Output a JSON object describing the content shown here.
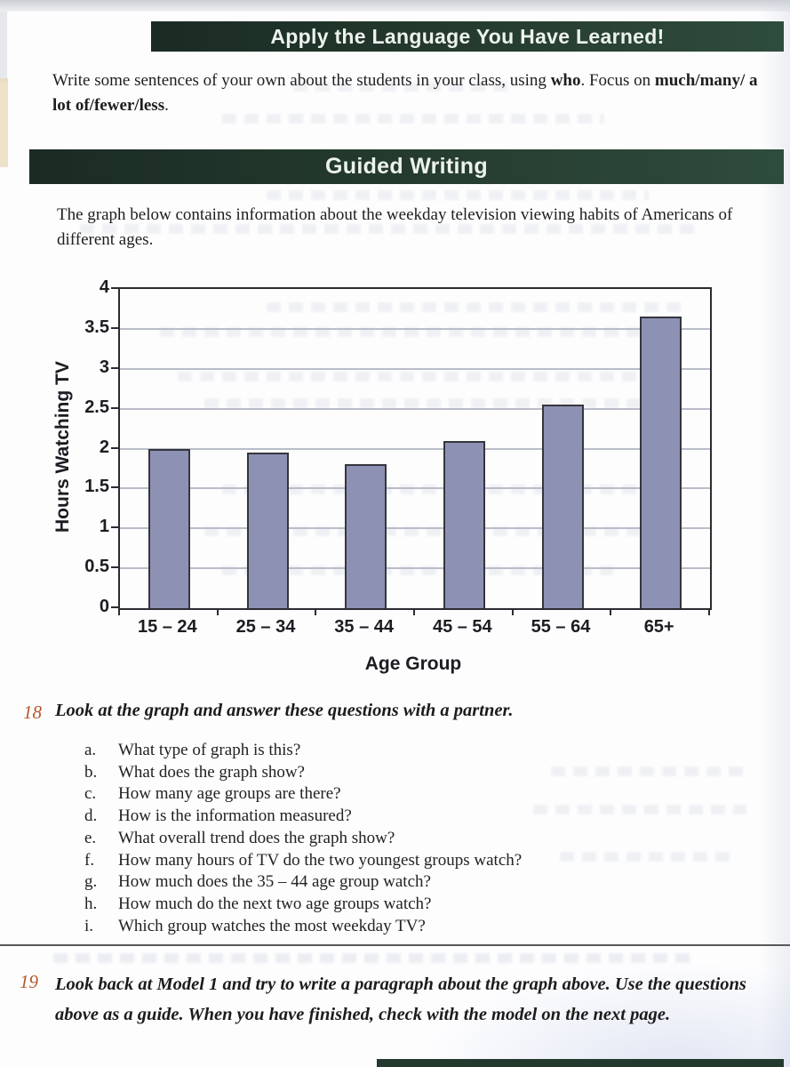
{
  "colors": {
    "banner_green": "#24392e",
    "banner_text": "#ecf2ec",
    "exercise_number_orange": "#b5582b",
    "bar_fill": "#8d92b4",
    "bar_border": "#35353d",
    "gridline": "#b9bdc9"
  },
  "header": {
    "banner1": "Apply the Language You Have Learned!",
    "banner2": "Guided Writing"
  },
  "intro": {
    "p1": "Write some sentences of your own about the students in your class, using ",
    "p2": "who",
    "p3": ". Focus on ",
    "p4": "much/many/ a lot of/fewer/less",
    "p5": "."
  },
  "guided": {
    "intro": "The graph below contains information about the weekday television viewing habits of Americans of different ages."
  },
  "chart_data": {
    "type": "bar",
    "title": "",
    "categories": [
      "15 – 24",
      "25 – 34",
      "35 – 44",
      "45 – 54",
      "55 – 64",
      "65+"
    ],
    "values": [
      2.0,
      1.95,
      1.8,
      2.1,
      2.55,
      3.65
    ],
    "xlabel": "Age Group",
    "ylabel": "Hours Watching TV",
    "ylim": [
      0,
      4
    ],
    "ytick_step": 0.5,
    "grid": true,
    "legend": "none"
  },
  "exercise18": {
    "number": "18",
    "prompt": "Look at the graph and answer these questions with a partner.",
    "items": [
      {
        "letter": "a.",
        "text": "What type of graph is this?"
      },
      {
        "letter": "b.",
        "text": "What does the graph show?"
      },
      {
        "letter": "c.",
        "text": "How many age groups are there?"
      },
      {
        "letter": "d.",
        "text": "How is the information measured?"
      },
      {
        "letter": "e.",
        "text": "What overall trend does the graph show?"
      },
      {
        "letter": "f.",
        "text": "How many hours of TV do the two youngest groups watch?"
      },
      {
        "letter": "g.",
        "text": "How much does the 35 – 44 age group watch?"
      },
      {
        "letter": "h.",
        "text": "How much do the next two age groups watch?"
      },
      {
        "letter": "i.",
        "text": "Which group watches the most weekday TV?"
      }
    ]
  },
  "exercise19": {
    "number": "19",
    "prompt": "Look back at Model 1 and try to write a paragraph about the graph above. Use the questions above as a guide. When you have finished, check with the model on the next page."
  }
}
